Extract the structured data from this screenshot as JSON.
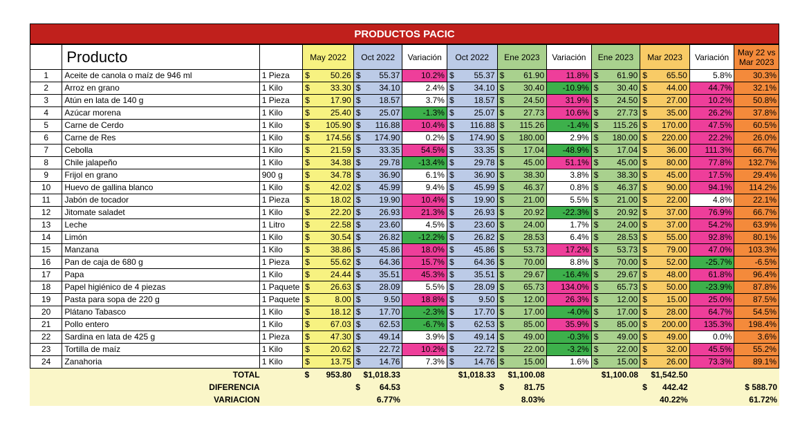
{
  "title": "PRODUCTOS PACIC",
  "headers": {
    "num": "",
    "producto": "Producto",
    "unidad": "",
    "may2022": "May 2022",
    "oct2022a": "Oct 2022",
    "var1": "Variación",
    "oct2022b": "Oct 2022",
    "ene2023a": "Ene 2023",
    "var2": "Variación",
    "ene2023b": "Ene 2023",
    "mar2023": "Mar 2023",
    "var3": "Variación",
    "last": "May 22 vs Mar 2023"
  },
  "currency": "$",
  "rows": [
    {
      "n": "1",
      "producto": "Aceite de canola o maíz de 946 ml",
      "unidad": "1 Pieza",
      "may": "50.26",
      "oct": "55.37",
      "v1": "10.2%",
      "v1c": "pink",
      "oct2": "55.37",
      "ene": "61.90",
      "v2": "11.8%",
      "v2c": "pink",
      "ene2": "61.90",
      "mar": "65.50",
      "v3": "5.8%",
      "v3c": "white",
      "tot": "30.3%"
    },
    {
      "n": "2",
      "producto": "Arroz en grano",
      "unidad": "1 Kilo",
      "may": "33.30",
      "oct": "34.10",
      "v1": "2.4%",
      "v1c": "white",
      "oct2": "34.10",
      "ene": "30.40",
      "v2": "-10.9%",
      "v2c": "green",
      "ene2": "30.40",
      "mar": "44.00",
      "v3": "44.7%",
      "v3c": "pink",
      "tot": "32.1%"
    },
    {
      "n": "3",
      "producto": "Atún en lata de 140 g",
      "unidad": "1 Pieza",
      "may": "17.90",
      "oct": "18.57",
      "v1": "3.7%",
      "v1c": "white",
      "oct2": "18.57",
      "ene": "24.50",
      "v2": "31.9%",
      "v2c": "pink",
      "ene2": "24.50",
      "mar": "27.00",
      "v3": "10.2%",
      "v3c": "pink",
      "tot": "50.8%"
    },
    {
      "n": "4",
      "producto": "Azúcar morena",
      "unidad": "1 Kilo",
      "may": "25.40",
      "oct": "25.07",
      "v1": "-1.3%",
      "v1c": "green",
      "oct2": "25.07",
      "ene": "27.73",
      "v2": "10.6%",
      "v2c": "pink",
      "ene2": "27.73",
      "mar": "35.00",
      "v3": "26.2%",
      "v3c": "pink",
      "tot": "37.8%"
    },
    {
      "n": "5",
      "producto": "Carne de Cerdo",
      "unidad": "1 Kilo",
      "may": "105.90",
      "oct": "116.88",
      "v1": "10.4%",
      "v1c": "pink",
      "oct2": "116.88",
      "ene": "115.26",
      "v2": "-1.4%",
      "v2c": "green",
      "ene2": "115.26",
      "mar": "170.00",
      "v3": "47.5%",
      "v3c": "pink",
      "tot": "60.5%"
    },
    {
      "n": "6",
      "producto": "Carne de Res",
      "unidad": "1 Kilo",
      "may": "174.56",
      "oct": "174.90",
      "v1": "0.2%",
      "v1c": "white",
      "oct2": "174.90",
      "ene": "180.00",
      "v2": "2.9%",
      "v2c": "white",
      "ene2": "180.00",
      "mar": "220.00",
      "v3": "22.2%",
      "v3c": "pink",
      "tot": "26.0%"
    },
    {
      "n": "7",
      "producto": "Cebolla",
      "unidad": "1 Kilo",
      "may": "21.59",
      "oct": "33.35",
      "v1": "54.5%",
      "v1c": "pink",
      "oct2": "33.35",
      "ene": "17.04",
      "v2": "-48.9%",
      "v2c": "green",
      "ene2": "17.04",
      "mar": "36.00",
      "v3": "111.3%",
      "v3c": "pink",
      "tot": "66.7%"
    },
    {
      "n": "8",
      "producto": "Chile jalapeño",
      "unidad": "1 Kilo",
      "may": "34.38",
      "oct": "29.78",
      "v1": "-13.4%",
      "v1c": "green",
      "oct2": "29.78",
      "ene": "45.00",
      "v2": "51.1%",
      "v2c": "pink",
      "ene2": "45.00",
      "mar": "80.00",
      "v3": "77.8%",
      "v3c": "pink",
      "tot": "132.7%"
    },
    {
      "n": "9",
      "producto": "Frijol en grano",
      "unidad": "900 g",
      "may": "34.78",
      "oct": "36.90",
      "v1": "6.1%",
      "v1c": "white",
      "oct2": "36.90",
      "ene": "38.30",
      "v2": "3.8%",
      "v2c": "white",
      "ene2": "38.30",
      "mar": "45.00",
      "v3": "17.5%",
      "v3c": "pink",
      "tot": "29.4%"
    },
    {
      "n": "10",
      "producto": "Huevo de gallina blanco",
      "unidad": "1 Kilo",
      "may": "42.02",
      "oct": "45.99",
      "v1": "9.4%",
      "v1c": "white",
      "oct2": "45.99",
      "ene": "46.37",
      "v2": "0.8%",
      "v2c": "white",
      "ene2": "46.37",
      "mar": "90.00",
      "v3": "94.1%",
      "v3c": "pink",
      "tot": "114.2%"
    },
    {
      "n": "11",
      "producto": "Jabón de tocador",
      "unidad": "1 Pieza",
      "may": "18.02",
      "oct": "19.90",
      "v1": "10.4%",
      "v1c": "pink",
      "oct2": "19.90",
      "ene": "21.00",
      "v2": "5.5%",
      "v2c": "white",
      "ene2": "21.00",
      "mar": "22.00",
      "v3": "4.8%",
      "v3c": "white",
      "tot": "22.1%"
    },
    {
      "n": "12",
      "producto": "Jitomate saladet",
      "unidad": "1 Kilo",
      "may": "22.20",
      "oct": "26.93",
      "v1": "21.3%",
      "v1c": "pink",
      "oct2": "26.93",
      "ene": "20.92",
      "v2": "-22.3%",
      "v2c": "green",
      "ene2": "20.92",
      "mar": "37.00",
      "v3": "76.9%",
      "v3c": "pink",
      "tot": "66.7%"
    },
    {
      "n": "13",
      "producto": "Leche",
      "unidad": "1 Litro",
      "may": "22.58",
      "oct": "23.60",
      "v1": "4.5%",
      "v1c": "white",
      "oct2": "23.60",
      "ene": "24.00",
      "v2": "1.7%",
      "v2c": "white",
      "ene2": "24.00",
      "mar": "37.00",
      "v3": "54.2%",
      "v3c": "pink",
      "tot": "63.9%"
    },
    {
      "n": "14",
      "producto": "Limón",
      "unidad": "1 Kilo",
      "may": "30.54",
      "oct": "26.82",
      "v1": "-12.2%",
      "v1c": "green",
      "oct2": "26.82",
      "ene": "28.53",
      "v2": "6.4%",
      "v2c": "white",
      "ene2": "28.53",
      "mar": "55.00",
      "v3": "92.8%",
      "v3c": "pink",
      "tot": "80.1%"
    },
    {
      "n": "15",
      "producto": "Manzana",
      "unidad": "1 Kilo",
      "may": "38.86",
      "oct": "45.86",
      "v1": "18.0%",
      "v1c": "pink",
      "oct2": "45.86",
      "ene": "53.73",
      "v2": "17.2%",
      "v2c": "pink",
      "ene2": "53.73",
      "mar": "79.00",
      "v3": "47.0%",
      "v3c": "pink",
      "tot": "103.3%"
    },
    {
      "n": "16",
      "producto": "Pan de caja de 680 g",
      "unidad": "1 Pieza",
      "may": "55.62",
      "oct": "64.36",
      "v1": "15.7%",
      "v1c": "pink",
      "oct2": "64.36",
      "ene": "70.00",
      "v2": "8.8%",
      "v2c": "white",
      "ene2": "70.00",
      "mar": "52.00",
      "v3": "-25.7%",
      "v3c": "green",
      "tot": "-6.5%"
    },
    {
      "n": "17",
      "producto": "Papa",
      "unidad": "1 Kilo",
      "may": "24.44",
      "oct": "35.51",
      "v1": "45.3%",
      "v1c": "pink",
      "oct2": "35.51",
      "ene": "29.67",
      "v2": "-16.4%",
      "v2c": "green",
      "ene2": "29.67",
      "mar": "48.00",
      "v3": "61.8%",
      "v3c": "pink",
      "tot": "96.4%"
    },
    {
      "n": "18",
      "producto": "Papel higiénico de 4 piezas",
      "unidad": "1 Paquete",
      "may": "26.63",
      "oct": "28.09",
      "v1": "5.5%",
      "v1c": "white",
      "oct2": "28.09",
      "ene": "65.73",
      "v2": "134.0%",
      "v2c": "pink",
      "ene2": "65.73",
      "mar": "50.00",
      "v3": "-23.9%",
      "v3c": "green",
      "tot": "87.8%"
    },
    {
      "n": "19",
      "producto": "Pasta para sopa de 220 g",
      "unidad": "1 Paquete",
      "may": "8.00",
      "oct": "9.50",
      "v1": "18.8%",
      "v1c": "pink",
      "oct2": "9.50",
      "ene": "12.00",
      "v2": "26.3%",
      "v2c": "pink",
      "ene2": "12.00",
      "mar": "15.00",
      "v3": "25.0%",
      "v3c": "pink",
      "tot": "87.5%"
    },
    {
      "n": "20",
      "producto": "Plátano Tabasco",
      "unidad": "1 Kilo",
      "may": "18.12",
      "oct": "17.70",
      "v1": "-2.3%",
      "v1c": "green",
      "oct2": "17.70",
      "ene": "17.00",
      "v2": "-4.0%",
      "v2c": "green",
      "ene2": "17.00",
      "mar": "28.00",
      "v3": "64.7%",
      "v3c": "pink",
      "tot": "54.5%"
    },
    {
      "n": "21",
      "producto": "Pollo entero",
      "unidad": "1 Kilo",
      "may": "67.03",
      "oct": "62.53",
      "v1": "-6.7%",
      "v1c": "green",
      "oct2": "62.53",
      "ene": "85.00",
      "v2": "35.9%",
      "v2c": "pink",
      "ene2": "85.00",
      "mar": "200.00",
      "v3": "135.3%",
      "v3c": "pink",
      "tot": "198.4%"
    },
    {
      "n": "22",
      "producto": "Sardina en lata de 425 g",
      "unidad": "1 Pieza",
      "may": "47.30",
      "oct": "49.14",
      "v1": "3.9%",
      "v1c": "white",
      "oct2": "49.14",
      "ene": "49.00",
      "v2": "-0.3%",
      "v2c": "green",
      "ene2": "49.00",
      "mar": "49.00",
      "v3": "0.0%",
      "v3c": "white",
      "tot": "3.6%"
    },
    {
      "n": "23",
      "producto": "Tortilla de maíz",
      "unidad": "1 Kilo",
      "may": "20.62",
      "oct": "22.72",
      "v1": "10.2%",
      "v1c": "pink",
      "oct2": "22.72",
      "ene": "22.00",
      "v2": "-3.2%",
      "v2c": "green",
      "ene2": "22.00",
      "mar": "32.00",
      "v3": "45.5%",
      "v3c": "pink",
      "tot": "55.2%"
    },
    {
      "n": "24",
      "producto": "Zanahoria",
      "unidad": "1 Kilo",
      "may": "13.75",
      "oct": "14.76",
      "v1": "7.3%",
      "v1c": "white",
      "oct2": "14.76",
      "ene": "15.00",
      "v2": "1.6%",
      "v2c": "white",
      "ene2": "15.00",
      "mar": "26.00",
      "v3": "73.3%",
      "v3c": "pink",
      "tot": "89.1%"
    }
  ],
  "footer": {
    "total_label": "TOTAL",
    "total_may": "953.80",
    "total_oct": "$1,018.33",
    "total_oct2": "$1,018.33",
    "total_ene": "$1,100.08",
    "total_ene2": "$1,100.08",
    "total_mar": "$1,542.50",
    "dif_label": "DIFERENCIA",
    "dif_1": "64.53",
    "dif_2": "81.75",
    "dif_3": "442.42",
    "dif_total": "$ 588.70",
    "var_label": "VARIACION",
    "var_1": "6.77%",
    "var_2": "8.03%",
    "var_3": "40.22%",
    "var_total": "61.72%"
  }
}
